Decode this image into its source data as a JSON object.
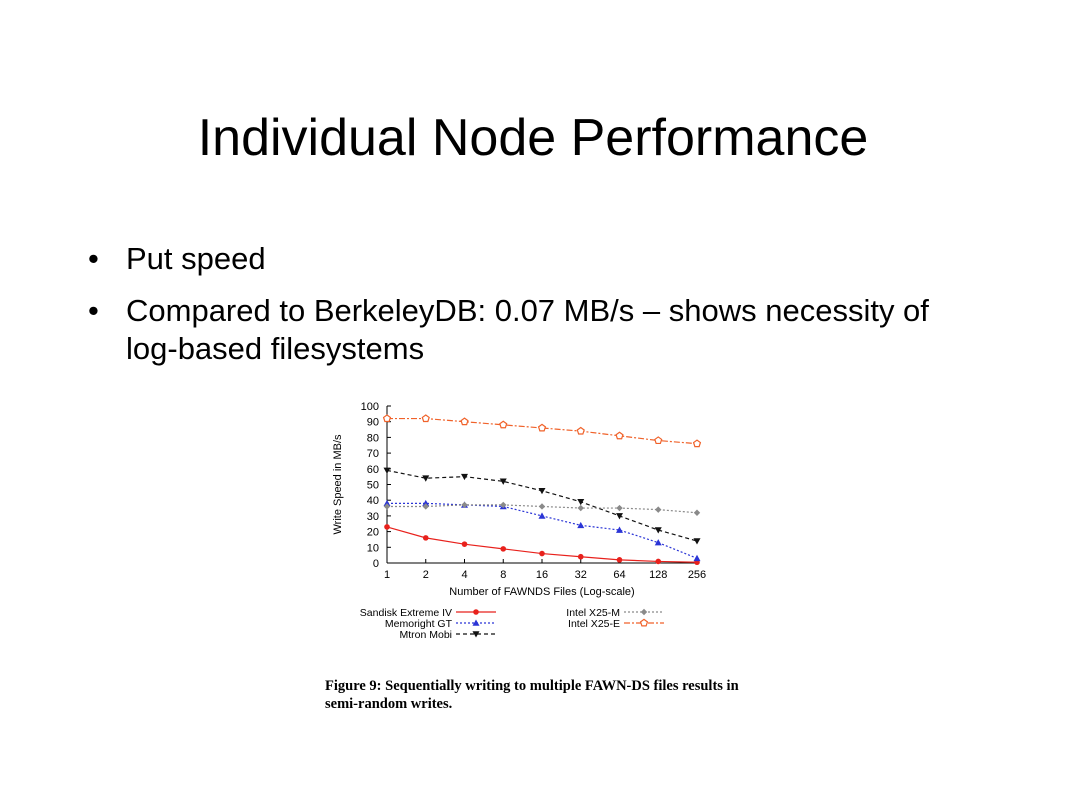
{
  "slide": {
    "title": "Individual Node Performance",
    "bullets": [
      "Put speed",
      "Compared to BerkeleyDB: 0.07 MB/s – shows necessity of log-based filesystems"
    ],
    "caption": "Figure 9: Sequentially writing to multiple FAWN-DS files results in semi-random writes."
  },
  "chart_data": {
    "type": "line",
    "xlabel": "Number of FAWNDS Files (Log-scale)",
    "ylabel": "Write Speed in MB/s",
    "x": [
      1,
      2,
      4,
      8,
      16,
      32,
      64,
      128,
      256
    ],
    "xticks": [
      "1",
      "2",
      "4",
      "8",
      "16",
      "32",
      "64",
      "128",
      "256"
    ],
    "xscale": "log",
    "ylim": [
      0,
      100
    ],
    "yticks": [
      0,
      10,
      20,
      30,
      40,
      50,
      60,
      70,
      80,
      90,
      100
    ],
    "grid": false,
    "legend_position": "bottom",
    "series": [
      {
        "name": "Sandisk Extreme IV",
        "color": "#e8211c",
        "marker": "circle",
        "dash": "solid",
        "values": [
          23,
          16,
          12,
          9,
          6,
          4,
          2,
          1,
          0.5
        ]
      },
      {
        "name": "Memoright GT",
        "color": "#2b35d6",
        "marker": "triangle-up",
        "dash": "dotted",
        "values": [
          38,
          38,
          37,
          36,
          30,
          24,
          21,
          13,
          3
        ]
      },
      {
        "name": "Mtron Mobi",
        "color": "#111111",
        "marker": "triangle-down",
        "dash": "dashed",
        "values": [
          59,
          54,
          55,
          52,
          46,
          39,
          30,
          21,
          14
        ]
      },
      {
        "name": "Intel X25-M",
        "color": "#8a8a8a",
        "marker": "diamond",
        "dash": "dotted",
        "values": [
          36,
          36,
          37,
          37,
          36,
          35,
          35,
          34,
          32
        ]
      },
      {
        "name": "Intel X25-E",
        "color": "#f0622a",
        "marker": "pentagon",
        "dash": "dashdot",
        "values": [
          92,
          92,
          90,
          88,
          86,
          84,
          81,
          78,
          76
        ]
      }
    ]
  }
}
